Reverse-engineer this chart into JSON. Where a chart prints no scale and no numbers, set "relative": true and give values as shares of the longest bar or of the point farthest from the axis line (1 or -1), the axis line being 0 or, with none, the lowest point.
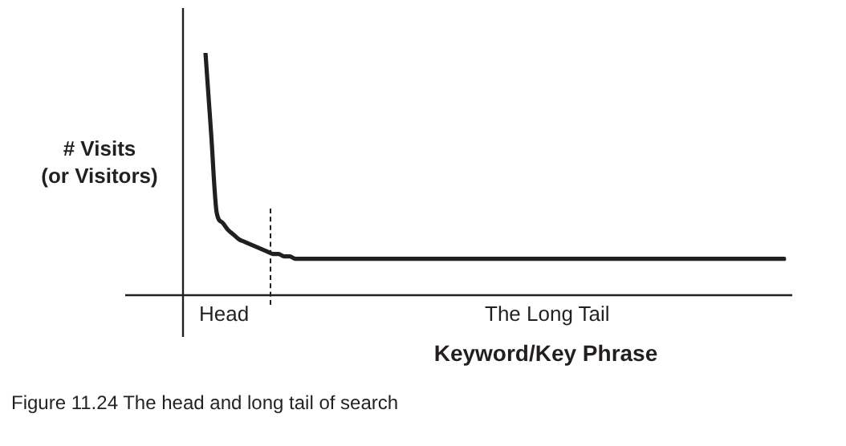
{
  "chart_data": {
    "type": "line",
    "relative": true,
    "marker": "none",
    "line_style": "solid",
    "ylabel": "# Visits\n(or Visitors)",
    "xlabel": "Keyword/Key Phrase",
    "categories": [
      null,
      null,
      null,
      null,
      null,
      null,
      null,
      null,
      null,
      null,
      null,
      null,
      null,
      null,
      null,
      null,
      null,
      null,
      null,
      null,
      null,
      null,
      null,
      null,
      null,
      null,
      null,
      null,
      null,
      null,
      null,
      null,
      null,
      null,
      null,
      null,
      null,
      null,
      null,
      null,
      null,
      null,
      null,
      null,
      null,
      null,
      null,
      null,
      null,
      null,
      null,
      null,
      null,
      null,
      null,
      null,
      null,
      null,
      null,
      null,
      null,
      null,
      null,
      null,
      null,
      null,
      null,
      null,
      null,
      null,
      null,
      null,
      null,
      null,
      null,
      null,
      null,
      null,
      null,
      null,
      null,
      null,
      null,
      null,
      null,
      null,
      null,
      null,
      null,
      null,
      null,
      null,
      null,
      null,
      null,
      null,
      null,
      null,
      null,
      null,
      null,
      null,
      null,
      null,
      null,
      null,
      null,
      null
    ],
    "series": [
      {
        "color": "#231f20",
        "values": [
          null,
          null,
          null,
          null,
          1.0,
          0.67,
          0.34,
          0.3,
          0.27,
          0.25,
          0.23,
          0.22,
          0.21,
          0.2,
          0.19,
          0.18,
          0.17,
          0.17,
          0.16,
          0.16,
          0.15,
          0.15,
          0.15,
          0.15,
          0.15,
          0.15,
          0.15,
          0.15,
          0.15,
          0.15,
          0.15,
          0.15,
          0.15,
          0.15,
          0.15,
          0.15,
          0.15,
          0.15,
          0.15,
          0.15,
          0.15,
          0.15,
          0.15,
          0.15,
          0.15,
          0.15,
          0.15,
          0.15,
          0.15,
          0.15,
          0.15,
          0.15,
          0.15,
          0.15,
          0.15,
          0.15,
          0.15,
          0.15,
          0.15,
          0.15,
          0.15,
          0.15,
          0.15,
          0.15,
          0.15,
          0.15,
          0.15,
          0.15,
          0.15,
          0.15,
          0.15,
          0.15,
          0.15,
          0.15,
          0.15,
          0.15,
          0.15,
          0.15,
          0.15,
          0.15,
          0.15,
          0.15,
          0.15,
          0.15,
          0.15,
          0.15,
          0.15,
          0.15,
          0.15,
          0.15,
          0.15,
          0.15,
          0.15,
          0.15,
          0.15,
          0.15,
          0.15,
          0.15,
          0.15,
          0.15,
          0.15,
          0.15,
          0.15,
          0.15,
          0.15,
          0.15,
          0.15,
          0.15
        ]
      }
    ],
    "annotations": [
      "Head",
      "The Long Tail",
      "Figure 11.24  The head and long tail of search"
    ]
  }
}
